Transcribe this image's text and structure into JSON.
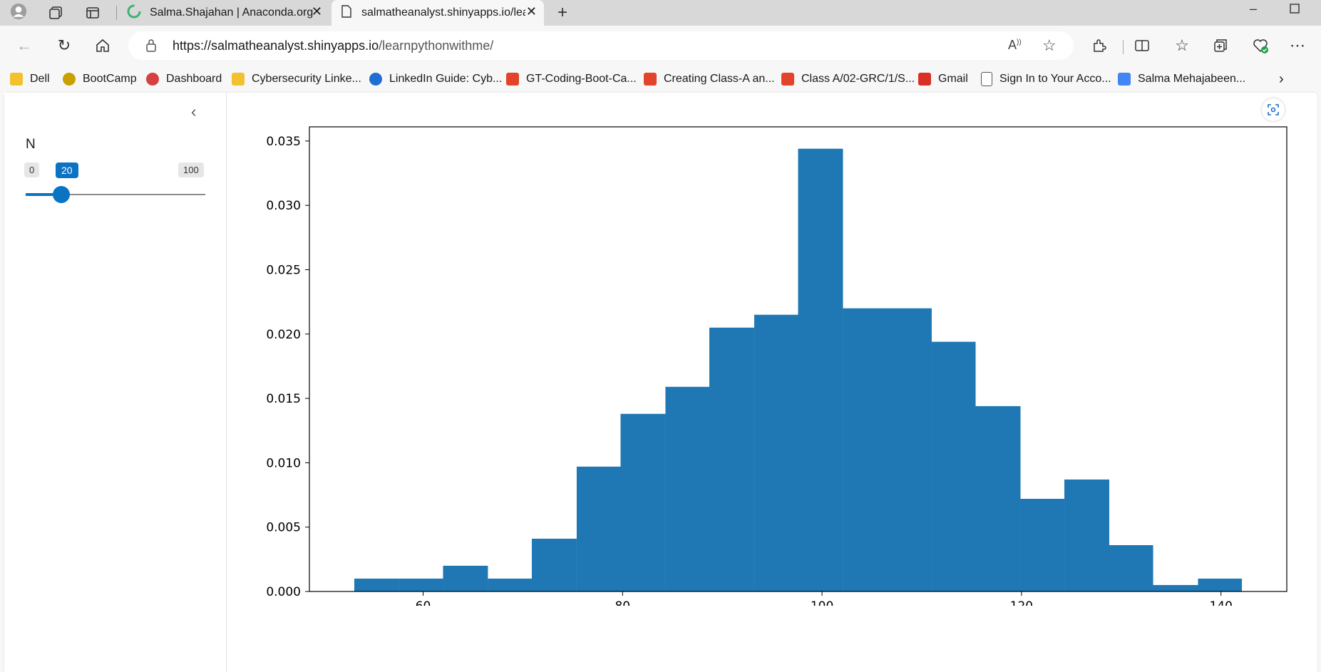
{
  "tabs": [
    {
      "title": "Salma.Shajahan | Anaconda.org",
      "active": false
    },
    {
      "title": "salmatheanalyst.shinyapps.io/learnpythonwithme/",
      "active": true
    }
  ],
  "address": {
    "host": "https://salmatheanalyst.shinyapps.io",
    "path": "/learnpythonwithme/"
  },
  "bookmarks": [
    {
      "label": "Dell",
      "icon": "folder-icon",
      "color": "#f2c12e"
    },
    {
      "label": "BootCamp",
      "icon": "bee-icon",
      "color": "#c8a000"
    },
    {
      "label": "Dashboard",
      "icon": "wheel-icon",
      "color": "#d64040"
    },
    {
      "label": "Cybersecurity Linke...",
      "icon": "folder-icon",
      "color": "#f2c12e"
    },
    {
      "label": "LinkedIn Guide: Cyb...",
      "icon": "2u-icon",
      "color": "#1f6fd1"
    },
    {
      "label": "GT-Coding-Boot-Ca...",
      "icon": "gitlab-icon",
      "color": "#e2432a"
    },
    {
      "label": "Creating Class-A an...",
      "icon": "gitlab-icon",
      "color": "#e2432a"
    },
    {
      "label": "Class A/02-GRC/1/S...",
      "icon": "gitlab-icon",
      "color": "#e2432a"
    },
    {
      "label": "Gmail",
      "icon": "gmail-icon",
      "color": "#d93025"
    },
    {
      "label": "Sign In to Your Acco...",
      "icon": "page-icon",
      "color": "#555555"
    },
    {
      "label": "Salma Mehajabeen...",
      "icon": "docs-icon",
      "color": "#4285f4"
    }
  ],
  "sidebar": {
    "slider": {
      "label": "N",
      "min": "0",
      "max": "100",
      "value": "20",
      "fraction": 0.2,
      "accent": "#0d6efd"
    }
  },
  "chart_data": {
    "type": "bar",
    "title": "",
    "xlabel": "",
    "ylabel": "",
    "color": "#1f77b4",
    "bins": [
      {
        "x0": 53.1,
        "x1": 57.6,
        "y": 0.001
      },
      {
        "x0": 57.6,
        "x1": 62.0,
        "y": 0.001
      },
      {
        "x0": 62.0,
        "x1": 66.5,
        "y": 0.002
      },
      {
        "x0": 66.5,
        "x1": 70.9,
        "y": 0.001
      },
      {
        "x0": 70.9,
        "x1": 75.4,
        "y": 0.0041
      },
      {
        "x0": 75.4,
        "x1": 79.8,
        "y": 0.0097
      },
      {
        "x0": 79.8,
        "x1": 84.3,
        "y": 0.0138
      },
      {
        "x0": 84.3,
        "x1": 88.7,
        "y": 0.0159
      },
      {
        "x0": 88.7,
        "x1": 93.2,
        "y": 0.0205
      },
      {
        "x0": 93.2,
        "x1": 97.6,
        "y": 0.0215
      },
      {
        "x0": 97.6,
        "x1": 102.1,
        "y": 0.0344
      },
      {
        "x0": 102.1,
        "x1": 106.5,
        "y": 0.022
      },
      {
        "x0": 106.5,
        "x1": 111.0,
        "y": 0.022
      },
      {
        "x0": 111.0,
        "x1": 115.4,
        "y": 0.0194
      },
      {
        "x0": 115.4,
        "x1": 119.9,
        "y": 0.0144
      },
      {
        "x0": 119.9,
        "x1": 124.3,
        "y": 0.0072
      },
      {
        "x0": 124.3,
        "x1": 128.8,
        "y": 0.0087
      },
      {
        "x0": 128.8,
        "x1": 133.2,
        "y": 0.0036
      },
      {
        "x0": 133.2,
        "x1": 137.7,
        "y": 0.0005
      },
      {
        "x0": 137.7,
        "x1": 142.1,
        "y": 0.001
      }
    ],
    "xlim": [
      48.6,
      146.6
    ],
    "ylim": [
      0,
      0.0361
    ],
    "xticks": [
      "60",
      "80",
      "100",
      "120",
      "140"
    ],
    "xtick_values": [
      60,
      80,
      100,
      120,
      140
    ],
    "yticks": [
      "0.000",
      "0.005",
      "0.010",
      "0.015",
      "0.020",
      "0.025",
      "0.030",
      "0.035"
    ],
    "ytick_values": [
      0,
      0.005,
      0.01,
      0.015,
      0.02,
      0.025,
      0.03,
      0.035
    ],
    "grid": false
  }
}
